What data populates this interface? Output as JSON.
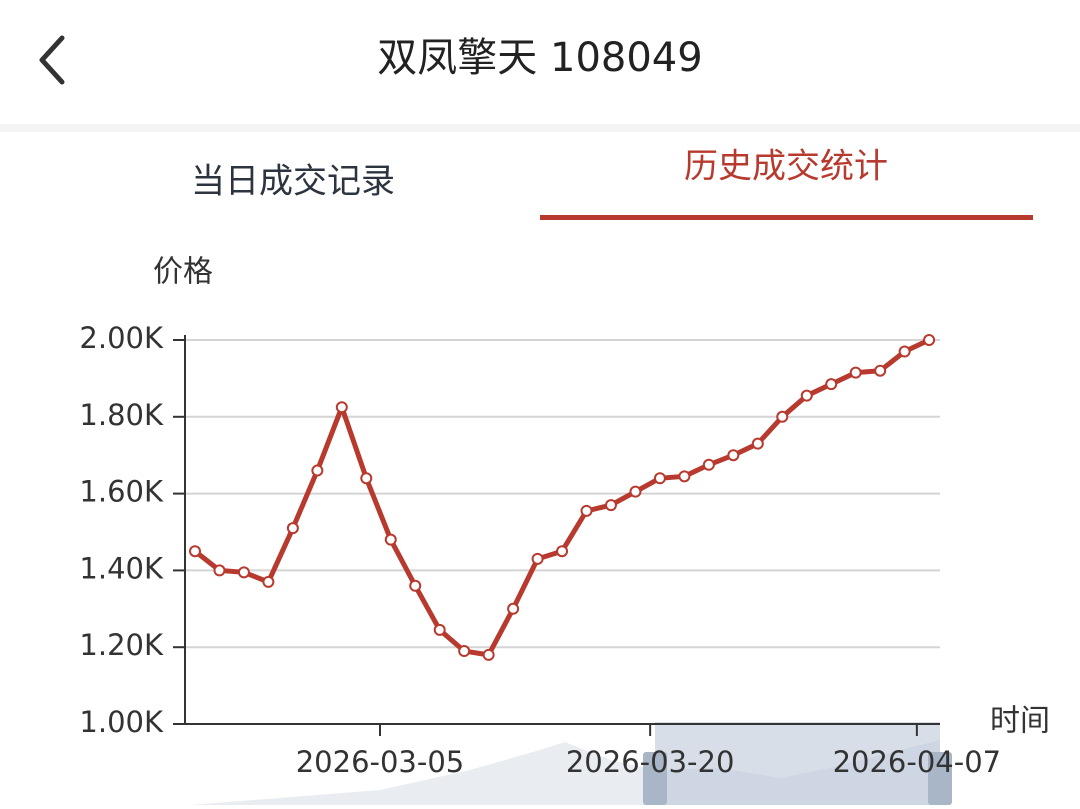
{
  "header": {
    "title": "双凤擎天 108049"
  },
  "tabs": [
    "当日成交记录",
    "历史成交统计"
  ],
  "chart_data": {
    "type": "line",
    "y_label": "价格",
    "x_label": "时间",
    "categories": [
      null,
      null,
      null,
      null,
      null,
      null,
      null,
      null,
      null,
      null,
      null,
      null,
      null,
      null,
      null,
      null,
      null,
      null,
      null,
      null,
      null,
      null,
      null,
      null,
      null,
      null,
      null,
      null,
      null,
      null,
      null
    ],
    "values": [
      1450,
      1400,
      1395,
      1370,
      1510,
      1660,
      1825,
      1640,
      1480,
      1360,
      1245,
      1190,
      1180,
      1300,
      1430,
      1450,
      1555,
      1570,
      1605,
      1640,
      1645,
      1675,
      1700,
      1730,
      1800,
      1855,
      1885,
      1915,
      1920,
      1970,
      2000
    ],
    "color": "#b83a2e",
    "ylim": [
      1000,
      2000
    ],
    "yticks": [
      {
        "value": 1000,
        "label": "1.00K"
      },
      {
        "value": 1200,
        "label": "1.20K"
      },
      {
        "value": 1400,
        "label": "1.40K"
      },
      {
        "value": 1600,
        "label": "1.60K"
      },
      {
        "value": 1800,
        "label": "1.80K"
      },
      {
        "value": 2000,
        "label": "2.00K"
      }
    ],
    "xticks": [
      {
        "value": 7.56,
        "label": "2026-03-05"
      },
      {
        "value": 18.6,
        "label": "2026-03-20"
      },
      {
        "value": 29.5,
        "label": "2026-04-07"
      }
    ],
    "grid": true
  }
}
